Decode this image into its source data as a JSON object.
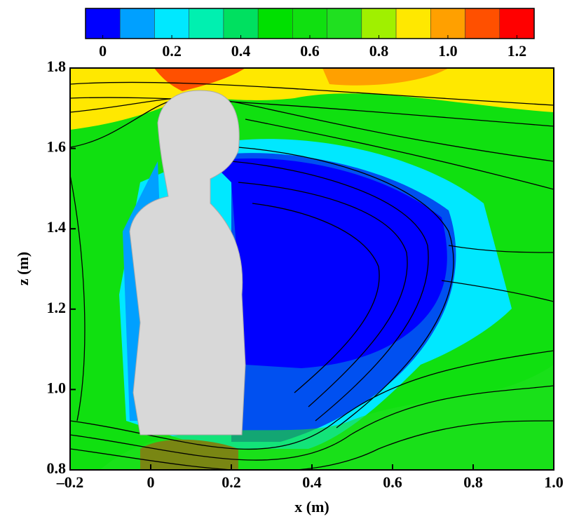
{
  "chart_data": {
    "type": "contour",
    "xlabel": "x (m)",
    "ylabel": "z (m)",
    "xlim": [
      -0.2,
      1.0
    ],
    "ylim": [
      0.8,
      1.8
    ],
    "xticks": [
      {
        "value": -0.2,
        "label": "–0.2"
      },
      0,
      0.2,
      0.4,
      0.6,
      0.8,
      {
        "value": 1,
        "label": "1.0"
      }
    ],
    "yticks": [
      0.8,
      {
        "value": 1,
        "label": "1.0"
      },
      1.2,
      1.4,
      1.6,
      1.8
    ],
    "colorbar": {
      "lim": [
        -0.05,
        1.25
      ],
      "colors": [
        "#0000ff",
        "#0050f0",
        "#00a0ff",
        "#00e8ff",
        "#00f0b0",
        "#00e060",
        "#00e000",
        "#10e010",
        "#20e020",
        "#a0f000",
        "#ffe800",
        "#ffa000",
        "#ff5000",
        "#ff0000"
      ],
      "ticks": [
        0,
        0.2,
        0.4,
        0.6,
        0.8,
        {
          "value": 1,
          "label": "1.0"
        },
        1.2
      ]
    }
  }
}
